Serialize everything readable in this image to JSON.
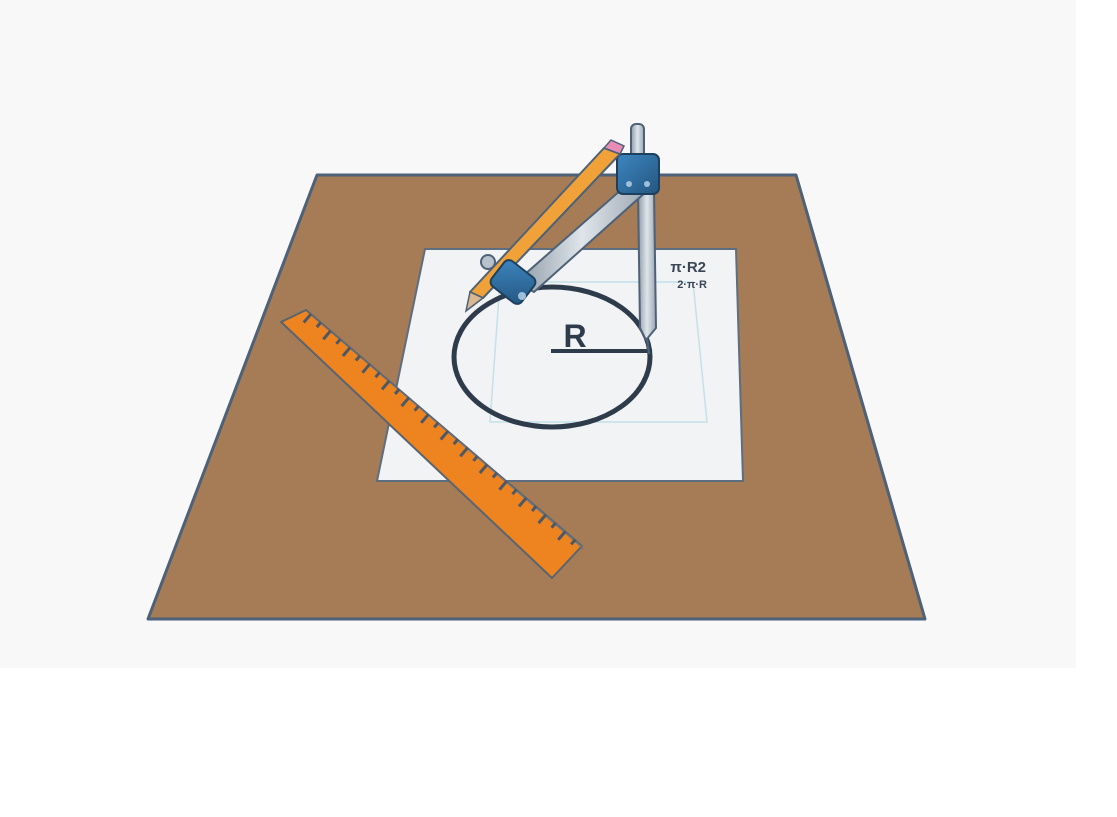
{
  "scene": {
    "radius_label": "R",
    "formula_line1": "π·R2",
    "formula_line2": "2·π·R",
    "ruler_ticks": 28,
    "colors": {
      "background": "#f8f8f8",
      "desk": "#a57c55",
      "desk_edge": "#4d6178",
      "paper": "#f2f3f5",
      "circle": "#2e3b4a",
      "ruler": "#ee8420",
      "compass_metal": "#b8c2cc",
      "compass_joint": "#2f6fa3",
      "pencil_body": "#f0a238"
    }
  }
}
